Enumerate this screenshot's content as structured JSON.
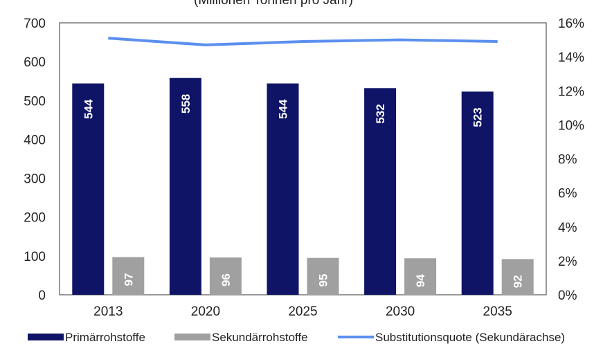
{
  "chart_data": {
    "type": "bar",
    "title": "(Millionen Tonnen pro Jahr)",
    "categories": [
      "2013",
      "2020",
      "2025",
      "2030",
      "2035"
    ],
    "series": [
      {
        "name": "Primärrohstoffe",
        "kind": "bar",
        "axis": "left",
        "color": "#0f1466",
        "values": [
          544,
          558,
          544,
          532,
          523
        ]
      },
      {
        "name": "Sekundärrohstoffe",
        "kind": "bar",
        "axis": "left",
        "color": "#a0a0a0",
        "values": [
          97,
          96,
          95,
          94,
          92
        ]
      },
      {
        "name": "Substitutionsquote (Sekundärachse)",
        "kind": "line",
        "axis": "right",
        "color": "#5b8ff0",
        "values": [
          15.1,
          14.7,
          14.9,
          15.0,
          14.9
        ]
      }
    ],
    "y_left": {
      "min": 0,
      "max": 700,
      "step": 100
    },
    "y_right": {
      "min": 0,
      "max": 16,
      "step": 2,
      "unit": "%"
    },
    "grid": false,
    "legend_position": "bottom"
  }
}
